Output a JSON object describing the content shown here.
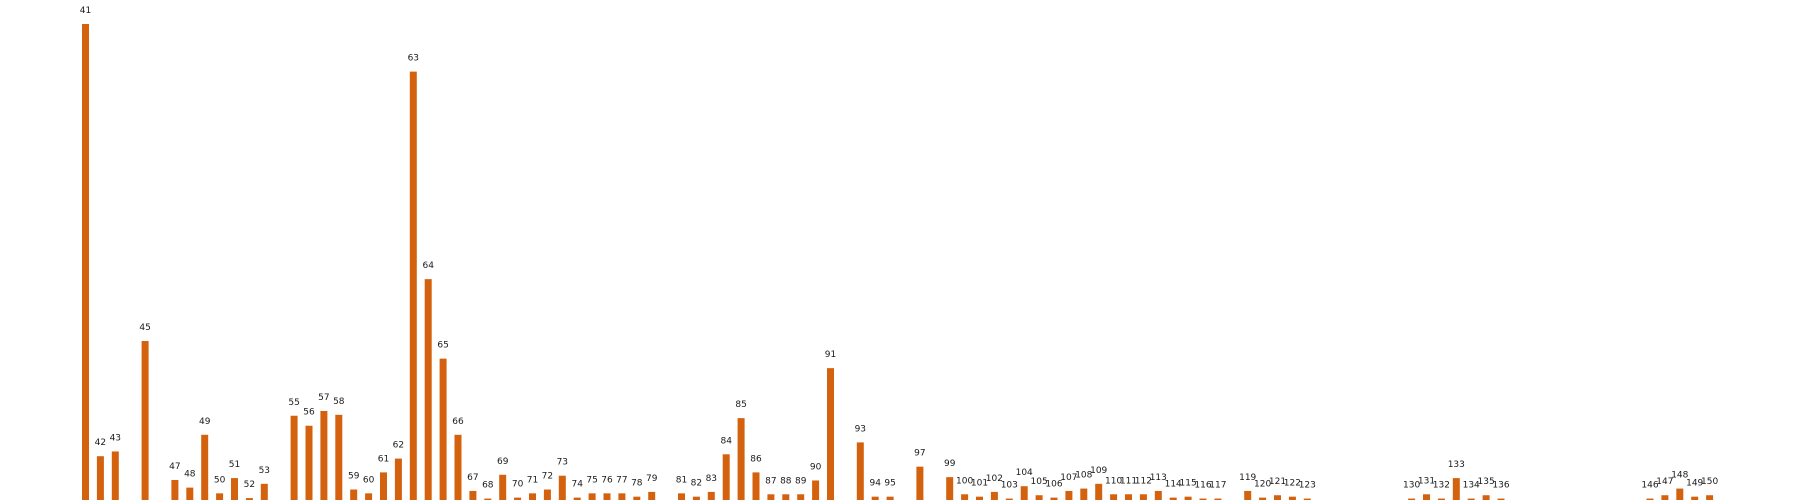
{
  "chart_data": {
    "type": "bar",
    "title": "",
    "xlabel": "",
    "ylabel": "",
    "x_domain": [
      36,
      155
    ],
    "ylim": [
      0,
      100
    ],
    "grid": false,
    "legend": "none",
    "bar_color": "#D4610E",
    "data_labels": "category",
    "categories": [
      "41",
      "42",
      "43",
      "45",
      "47",
      "48",
      "49",
      "50",
      "51",
      "52",
      "53",
      "55",
      "56",
      "57",
      "58",
      "59",
      "60",
      "61",
      "62",
      "63",
      "64",
      "65",
      "66",
      "67",
      "68",
      "69",
      "70",
      "71",
      "72",
      "73",
      "74",
      "75",
      "76",
      "77",
      "78",
      "79",
      "81",
      "82",
      "83",
      "84",
      "85",
      "86",
      "87",
      "88",
      "89",
      "90",
      "91",
      "93",
      "94",
      "95",
      "97",
      "99",
      "100",
      "101",
      "102",
      "103",
      "104",
      "105",
      "106",
      "107",
      "108",
      "109",
      "110",
      "111",
      "112",
      "113",
      "114",
      "115",
      "116",
      "117",
      "119",
      "120",
      "121",
      "122",
      "123",
      "130",
      "131",
      "132",
      "133",
      "134",
      "135",
      "136",
      "146",
      "147",
      "148",
      "149",
      "150"
    ],
    "values": [
      100,
      9.2,
      10.2,
      33.4,
      4.2,
      2.6,
      13.7,
      1.4,
      4.6,
      0.4,
      3.4,
      17.7,
      15.6,
      18.7,
      17.9,
      2.2,
      1.4,
      5.8,
      8.7,
      90,
      46.4,
      29.7,
      13.7,
      1.9,
      0.3,
      5.3,
      0.5,
      1.4,
      2.2,
      5.1,
      0.5,
      1.4,
      1.4,
      1.4,
      0.7,
      1.7,
      1.4,
      0.7,
      1.7,
      9.6,
      17.2,
      5.8,
      1.2,
      1.2,
      1.2,
      4.1,
      27.7,
      12.1,
      0.7,
      0.7,
      7,
      4.8,
      1.2,
      0.7,
      1.7,
      0.3,
      2.9,
      1,
      0.5,
      1.9,
      2.4,
      3.4,
      1.2,
      1.2,
      1.2,
      1.9,
      0.5,
      0.7,
      0.3,
      0.3,
      1.9,
      0.5,
      1,
      0.7,
      0.3,
      0.3,
      1.2,
      0.3,
      4.6,
      0.3,
      1,
      0.3,
      0.3,
      1,
      2.4,
      0.7,
      1
    ]
  }
}
